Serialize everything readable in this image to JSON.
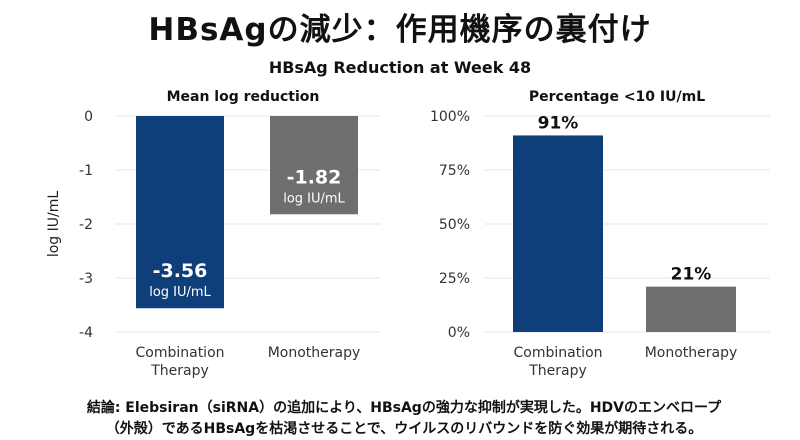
{
  "title": "HBsAgの減少：作用機序の裏付け",
  "subtitle": "HBsAg Reduction at Week 48",
  "conclusion": {
    "line1": "結論: Elebsiran（siRNA）の追加により、HBsAgの強力な抑制が実現した。HDVのエンベロープ",
    "line2": "（外殻）であるHBsAgを枯渇させることで、ウイルスのリバウンドを防ぐ効果が期待される。"
  },
  "colors": {
    "combination": "#0f3f7a",
    "mono": "#6e6e6e",
    "grid": "#e4e4e4"
  },
  "chart_data": [
    {
      "type": "bar",
      "title": "Mean log reduction",
      "ylabel": "log IU/mL",
      "categories": [
        "Combination Therapy",
        "Monotherapy"
      ],
      "values": [
        -3.56,
        -1.82
      ],
      "value_labels": [
        "-3.56",
        "-1.82"
      ],
      "value_units": [
        "log IU/mL",
        "log IU/mL"
      ],
      "ylim": [
        -4,
        0
      ],
      "yticks": [
        0,
        -1,
        -2,
        -3,
        -4
      ],
      "ytick_labels": [
        "0",
        "-1",
        "-2",
        "-3",
        "-4"
      ],
      "grid": true
    },
    {
      "type": "bar",
      "title": "Percentage <10 IU/mL",
      "categories": [
        "Combination Therapy",
        "Monotherapy"
      ],
      "values": [
        91,
        21
      ],
      "value_labels": [
        "91%",
        "21%"
      ],
      "ylim": [
        0,
        100
      ],
      "yticks": [
        0,
        25,
        50,
        75,
        100
      ],
      "ytick_labels": [
        "0%",
        "25%",
        "50%",
        "75%",
        "100%"
      ],
      "grid": true
    }
  ]
}
